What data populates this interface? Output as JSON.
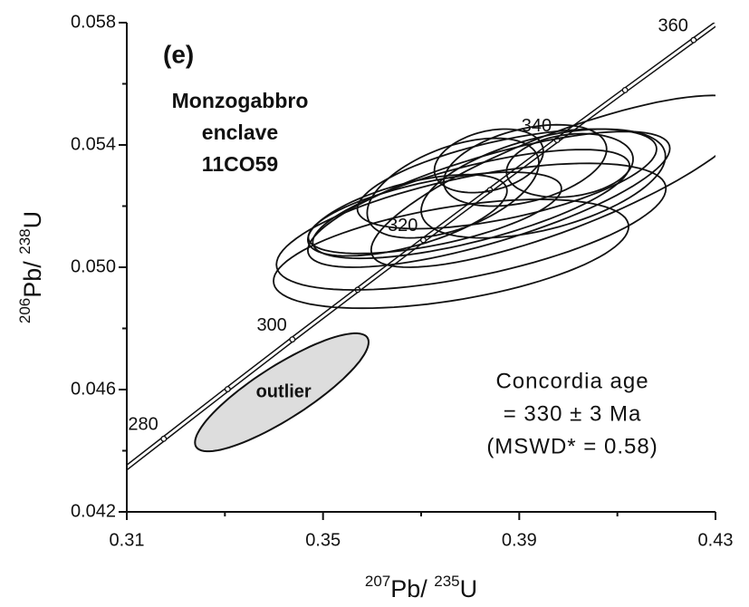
{
  "chart_data": {
    "type": "concordia",
    "panel_label": "(e)",
    "sample": [
      "Monzogabbro",
      "enclave",
      "11CO59"
    ],
    "age_note": [
      "Concordia age",
      "= 330 ± 3 Ma",
      "(MSWD* = 0.58)"
    ],
    "x_label": [
      {
        "text": "207",
        "sup": true
      },
      {
        "text": "Pb/ ",
        "sup": false
      },
      {
        "text": "235",
        "sup": true
      },
      {
        "text": "U",
        "sup": false
      }
    ],
    "y_label": [
      {
        "text": "206",
        "sup": true
      },
      {
        "text": "Pb/ ",
        "sup": false
      },
      {
        "text": "238",
        "sup": true
      },
      {
        "text": "U",
        "sup": false
      }
    ],
    "xlim": [
      0.31,
      0.43
    ],
    "xticks": [
      0.31,
      0.35,
      0.39,
      0.43
    ],
    "xminor": [
      0.33,
      0.37,
      0.41
    ],
    "ylim": [
      0.042,
      0.058
    ],
    "yticks": [
      0.042,
      0.046,
      {
        "value": 0.05,
        "label": "0.050"
      },
      0.054,
      0.058
    ],
    "yminor": [
      0.044,
      0.048,
      0.052,
      0.056
    ],
    "concordia": {
      "ages": [
        280,
        290,
        300,
        310,
        320,
        330,
        340,
        350,
        360
      ],
      "x": [
        0.31753,
        0.330558,
        0.34375,
        0.35707,
        0.37045,
        0.38403,
        0.39772,
        0.41157,
        0.42554
      ],
      "y": [
        0.04439,
        0.046014,
        0.04764,
        0.049264,
        0.05089,
        0.052524,
        0.05416,
        0.055795,
        0.05743
      ],
      "label_every": 2,
      "color": "#111"
    },
    "ellipses": [
      {
        "x": 0.3802,
        "y": 0.05133,
        "sx": 0.0397,
        "sy": 0.00207,
        "rho": 0.6
      },
      {
        "x": 0.3761,
        "y": 0.05044,
        "sx": 0.0362,
        "sy": 0.00178,
        "rho": 0.5
      },
      {
        "x": 0.3986,
        "y": 0.05281,
        "sx": 0.0388,
        "sy": 0.00281,
        "rho": 0.8
      },
      {
        "x": 0.3838,
        "y": 0.05222,
        "sx": 0.0369,
        "sy": 0.00222,
        "rho": 0.75
      },
      {
        "x": 0.3802,
        "y": 0.05207,
        "sx": 0.0323,
        "sy": 0.00178,
        "rho": 0.7
      },
      {
        "x": 0.3728,
        "y": 0.05178,
        "sx": 0.0258,
        "sy": 0.00133,
        "rho": 0.6
      },
      {
        "x": 0.3875,
        "y": 0.05289,
        "sx": 0.0305,
        "sy": 0.00163,
        "rho": 0.6
      },
      {
        "x": 0.3949,
        "y": 0.05274,
        "sx": 0.0249,
        "sy": 0.00178,
        "rho": 0.5
      },
      {
        "x": 0.3912,
        "y": 0.05333,
        "sx": 0.0166,
        "sy": 0.00133,
        "rho": 0.4
      },
      {
        "x": 0.3838,
        "y": 0.05348,
        "sx": 0.0111,
        "sy": 0.00104,
        "rho": 0.3
      },
      {
        "x": 0.3765,
        "y": 0.05259,
        "sx": 0.0175,
        "sy": 0.00163,
        "rho": 0.5
      },
      {
        "x": 0.3672,
        "y": 0.0517,
        "sx": 0.0203,
        "sy": 0.00133,
        "rho": 0.6
      },
      {
        "x": 0.4003,
        "y": 0.05333,
        "sx": 0.0129,
        "sy": 0.00104,
        "rho": 0.2
      }
    ],
    "ellipse_color": "#111",
    "outlier": {
      "label": "outlier",
      "x": 0.3416,
      "y": 0.04591,
      "sx": 0.0177,
      "sy": 0.00193,
      "rho": 0.85,
      "color": "#dddddd"
    }
  }
}
